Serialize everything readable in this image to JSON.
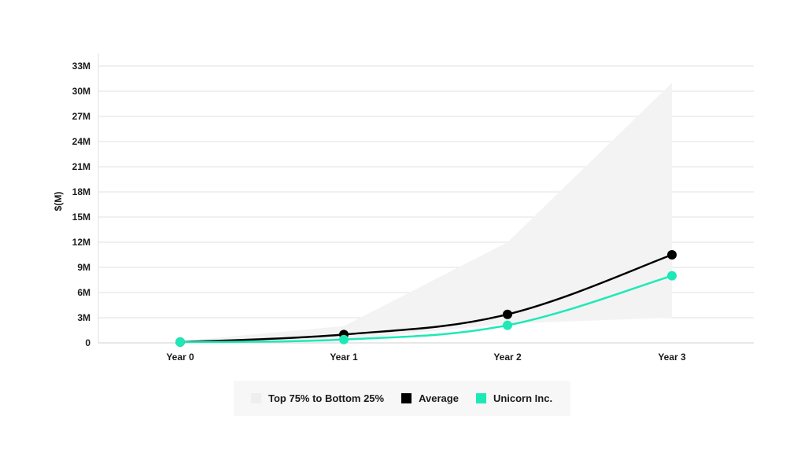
{
  "chart_data": {
    "type": "line",
    "categories": [
      "Year 0",
      "Year 1",
      "Year 2",
      "Year 3"
    ],
    "ylabel": "$(M)",
    "ylim": [
      0,
      33
    ],
    "yticks": [
      0,
      3,
      6,
      9,
      12,
      15,
      18,
      21,
      24,
      27,
      30,
      33
    ],
    "ytick_labels": [
      "0",
      "3M",
      "6M",
      "9M",
      "12M",
      "15M",
      "18M",
      "21M",
      "24M",
      "27M",
      "30M",
      "33M"
    ],
    "grid": true,
    "band": {
      "name": "Top 75% to Bottom 25%",
      "upper": [
        0.2,
        2.0,
        12.0,
        31.0
      ],
      "lower": [
        0.1,
        0.3,
        2.3,
        3.0
      ],
      "color": "#f3f3f3"
    },
    "series": [
      {
        "name": "Average",
        "values": [
          0.1,
          1.0,
          3.4,
          10.5
        ],
        "color": "#000000"
      },
      {
        "name": "Unicorn Inc.",
        "values": [
          0.1,
          0.4,
          2.1,
          8.0
        ],
        "color": "#1de9b6"
      }
    ],
    "legend_position": "bottom-center"
  }
}
